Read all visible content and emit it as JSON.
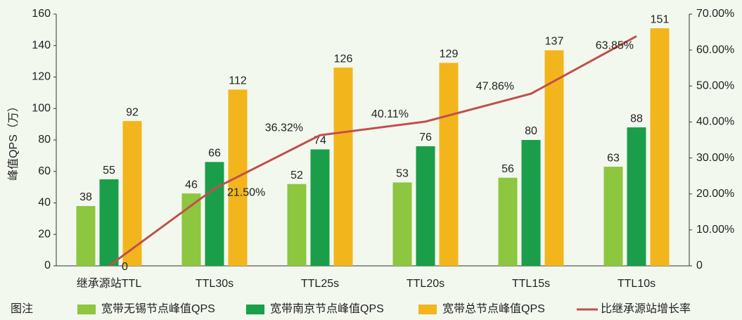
{
  "chart_data": {
    "type": "bar_line",
    "y_label": "峰值QPS（万）",
    "legend_title": "图注",
    "categories": [
      "继承源站TTL",
      "TTL30s",
      "TTL25s",
      "TTL20s",
      "TTL15s",
      "TTL10s"
    ],
    "series": [
      {
        "name": "宽带无锡节点峰值QPS",
        "type": "bar",
        "color": "#8dc63f",
        "values": [
          38,
          46,
          52,
          53,
          56,
          63
        ]
      },
      {
        "name": "宽带南京节点峰值QPS",
        "type": "bar",
        "color": "#1a9e4a",
        "values": [
          55,
          66,
          74,
          76,
          80,
          88
        ]
      },
      {
        "name": "宽带总节点峰值QPS",
        "type": "bar",
        "color": "#f2b61c",
        "values": [
          92,
          112,
          126,
          129,
          137,
          151
        ]
      },
      {
        "name": "比继承源站增长率",
        "type": "line",
        "axis": "y2",
        "color": "#c0504d",
        "values": [
          0,
          21.5,
          36.32,
          40.11,
          47.86,
          63.85
        ],
        "value_labels": [
          "0",
          "21.50%",
          "36.32%",
          "40.11%",
          "47.86%",
          "63.85%"
        ]
      }
    ],
    "ylim": [
      0,
      160
    ],
    "yticks": [
      0,
      20,
      40,
      60,
      80,
      100,
      120,
      140,
      160
    ],
    "y2lim": [
      0,
      70
    ],
    "y2ticks": [
      0,
      {
        "value": 10,
        "label": "10.00%"
      },
      {
        "value": 20,
        "label": "20.00%"
      },
      {
        "value": 30,
        "label": "30.00%"
      },
      {
        "value": 40,
        "label": "40.00%"
      },
      {
        "value": 50,
        "label": "50.00%"
      },
      {
        "value": 60,
        "label": "60.00%"
      },
      {
        "value": 70,
        "label": "70.00%"
      }
    ]
  }
}
